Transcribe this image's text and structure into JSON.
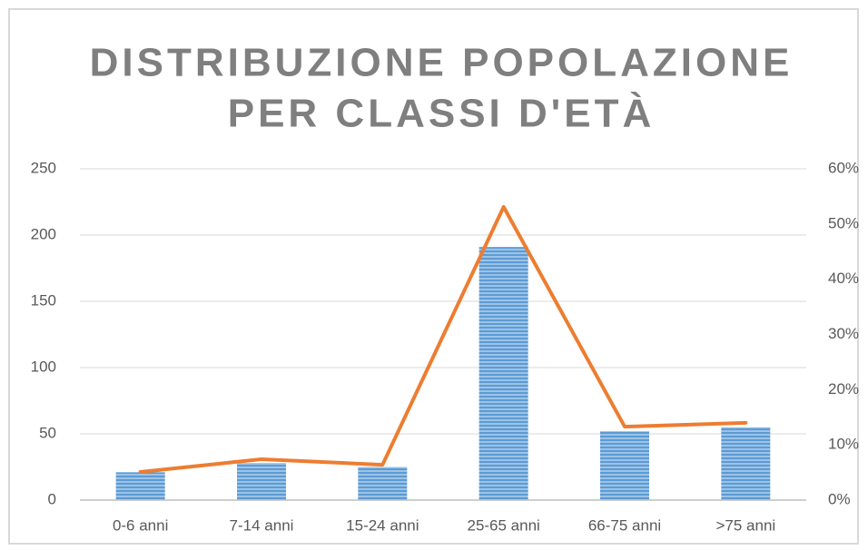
{
  "chart_data": {
    "type": "bar",
    "title": [
      "DISTRIBUZIONE POPOLAZIONE",
      "PER CLASSI D'ETÀ"
    ],
    "categories": [
      "0-6 anni",
      "7-14 anni",
      "15-24 anni",
      "25-65 anni",
      "66-75 anni",
      ">75 anni"
    ],
    "series": [
      {
        "type": "bar",
        "color": "#5b9bd5",
        "values": [
          21,
          28,
          25,
          191,
          52,
          55
        ]
      },
      {
        "type": "line",
        "axis": "y2",
        "color": "#ed7d31",
        "values": [
          5.1,
          7.4,
          6.4,
          53.1,
          13.3,
          14
        ]
      }
    ],
    "ylim": [
      0,
      250
    ],
    "yticks": [
      0,
      50,
      100,
      150,
      200,
      250
    ],
    "y2lim": [
      0,
      60
    ],
    "y2ticks": [
      {
        "value": 0,
        "label": "0%"
      },
      {
        "value": 10,
        "label": "10%"
      },
      {
        "value": 20,
        "label": "20%"
      },
      {
        "value": 30,
        "label": "30%"
      },
      {
        "value": 40,
        "label": "40%"
      },
      {
        "value": 50,
        "label": "50%"
      },
      {
        "value": 60,
        "label": "60%"
      }
    ],
    "grid": true
  }
}
